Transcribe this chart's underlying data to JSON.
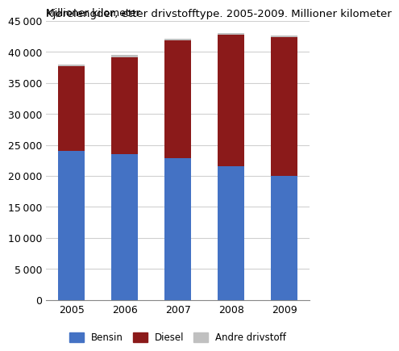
{
  "title": "Kjørelengder, etter drivstofftype. 2005-2009. Millioner kilometer",
  "ylabel": "Millioner kilometer",
  "years": [
    "2005",
    "2006",
    "2007",
    "2008",
    "2009"
  ],
  "bensin": [
    24000,
    23500,
    22900,
    21500,
    20000
  ],
  "diesel": [
    13700,
    15700,
    19000,
    21300,
    22400
  ],
  "andre": [
    300,
    300,
    300,
    300,
    300
  ],
  "color_bensin": "#4472C4",
  "color_diesel": "#8B1A1A",
  "color_andre": "#C0C0C0",
  "ylim": [
    0,
    45000
  ],
  "yticks": [
    0,
    5000,
    10000,
    15000,
    20000,
    25000,
    30000,
    35000,
    40000,
    45000
  ],
  "legend_labels": [
    "Bensin",
    "Diesel",
    "Andre drivstoff"
  ],
  "title_fontsize": 9.5,
  "tick_fontsize": 9,
  "ylabel_fontsize": 9
}
